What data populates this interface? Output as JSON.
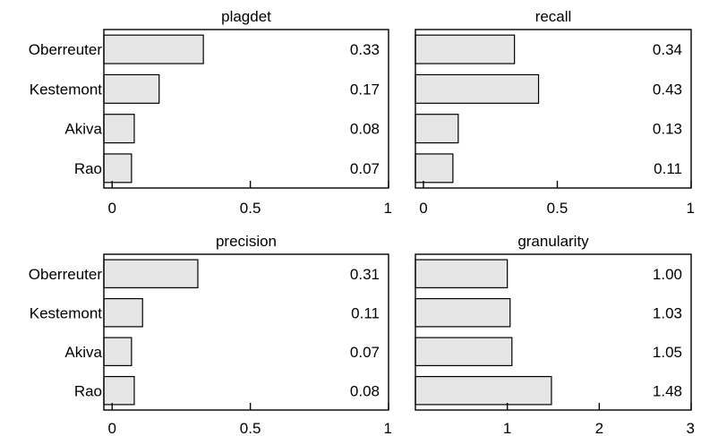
{
  "colors": {
    "bar_fill": "#e6e6e6",
    "bar_stroke": "#000000"
  },
  "chart_data": [
    {
      "type": "bar",
      "orientation": "horizontal",
      "title": "plagdet",
      "categories": [
        "Oberreuter",
        "Kestemont",
        "Akiva",
        "Rao"
      ],
      "values": [
        0.33,
        0.17,
        0.08,
        0.07
      ],
      "value_labels": [
        "0.33",
        "0.17",
        "0.08",
        "0.07"
      ],
      "xlim": [
        -0.03,
        1
      ],
      "xticks": [
        0,
        0.5,
        1
      ],
      "xtick_labels": [
        "0",
        "0.5",
        "1"
      ],
      "grid": false
    },
    {
      "type": "bar",
      "orientation": "horizontal",
      "title": "recall",
      "categories": [
        "Oberreuter",
        "Kestemont",
        "Akiva",
        "Rao"
      ],
      "values": [
        0.34,
        0.43,
        0.13,
        0.11
      ],
      "value_labels": [
        "0.34",
        "0.43",
        "0.13",
        "0.11"
      ],
      "xlim": [
        -0.03,
        1
      ],
      "xticks": [
        0,
        0.5,
        1
      ],
      "xtick_labels": [
        "0",
        "0.5",
        "1"
      ],
      "grid": false
    },
    {
      "type": "bar",
      "orientation": "horizontal",
      "title": "precision",
      "categories": [
        "Oberreuter",
        "Kestemont",
        "Akiva",
        "Rao"
      ],
      "values": [
        0.31,
        0.11,
        0.07,
        0.08
      ],
      "value_labels": [
        "0.31",
        "0.11",
        "0.07",
        "0.08"
      ],
      "xlim": [
        -0.03,
        1
      ],
      "xticks": [
        0,
        0.5,
        1
      ],
      "xtick_labels": [
        "0",
        "0.5",
        "1"
      ],
      "grid": false
    },
    {
      "type": "bar",
      "orientation": "horizontal",
      "title": "granularity",
      "categories": [
        "Oberreuter",
        "Kestemont",
        "Akiva",
        "Rao"
      ],
      "values": [
        1.0,
        1.03,
        1.05,
        1.48
      ],
      "value_labels": [
        "1.00",
        "1.03",
        "1.05",
        "1.48"
      ],
      "xlim": [
        0,
        3
      ],
      "xticks": [
        1,
        2,
        3
      ],
      "xtick_labels": [
        "1",
        "2",
        "3"
      ],
      "grid": false
    }
  ]
}
